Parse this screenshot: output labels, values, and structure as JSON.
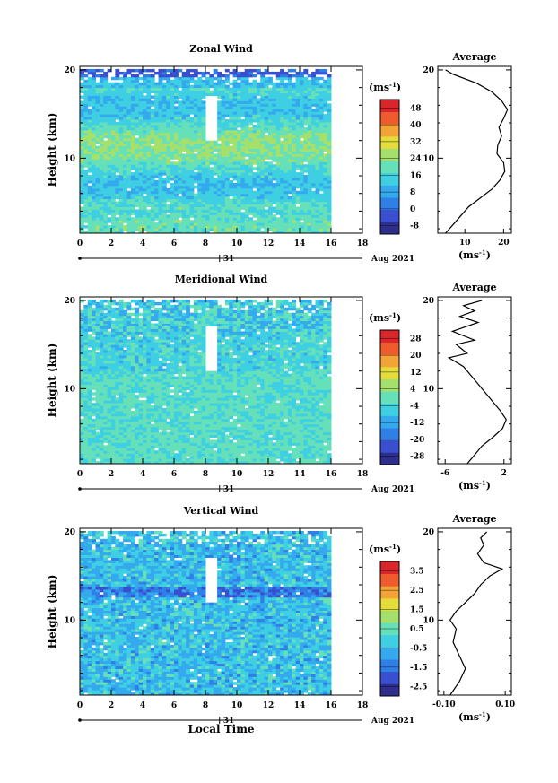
{
  "figure": {
    "date_label": "Aug 2021",
    "day_label": "31",
    "xlabel": "Local Time"
  },
  "chart_data": [
    {
      "type": "heatmap",
      "id": "zonal",
      "title": "Zonal Wind",
      "ylabel": "Height (km)",
      "xlabel": "",
      "xlim": [
        0,
        18
      ],
      "ylim": [
        1.5,
        20.4
      ],
      "xticks": [
        "0",
        "2",
        "4",
        "6",
        "8",
        "10",
        "12",
        "14",
        "16",
        "18"
      ],
      "yticks": [
        "10",
        "20"
      ],
      "data_x_end": 16,
      "colorbar": {
        "unit": "(ms",
        "unit_exp": "-1",
        "unit_close": ")",
        "ticks": [
          "-8",
          "0",
          "8",
          "16",
          "24",
          "32",
          "40",
          "48"
        ],
        "range": [
          -12,
          52
        ]
      },
      "profile": {
        "title": "Average",
        "xunit": "(ms",
        "xunit_exp": "-1",
        "xunit_close": ")",
        "xticks": [
          "10",
          "20"
        ],
        "xlim": [
          3,
          22
        ],
        "yticks": [
          "10",
          "20"
        ],
        "points": [
          [
            5,
            1.5
          ],
          [
            7,
            2.5
          ],
          [
            9,
            3.5
          ],
          [
            11,
            4.5
          ],
          [
            14,
            5.5
          ],
          [
            17,
            6.5
          ],
          [
            19,
            7.5
          ],
          [
            20.3,
            8.5
          ],
          [
            20,
            9.5
          ],
          [
            18.3,
            10.5
          ],
          [
            18.5,
            11.5
          ],
          [
            19.5,
            12.5
          ],
          [
            18.8,
            13.5
          ],
          [
            20,
            14.5
          ],
          [
            21,
            15.5
          ],
          [
            19.5,
            16.5
          ],
          [
            17,
            17.5
          ],
          [
            13,
            18.5
          ],
          [
            7,
            19.5
          ],
          [
            5,
            20
          ]
        ]
      }
    },
    {
      "type": "heatmap",
      "id": "meridional",
      "title": "Meridional Wind",
      "ylabel": "Height (km)",
      "xlabel": "",
      "xlim": [
        0,
        18
      ],
      "ylim": [
        1.5,
        20.4
      ],
      "xticks": [
        "0",
        "2",
        "4",
        "6",
        "8",
        "10",
        "12",
        "14",
        "16",
        "18"
      ],
      "yticks": [
        "10",
        "20"
      ],
      "data_x_end": 16,
      "colorbar": {
        "unit": "(ms",
        "unit_exp": "-1",
        "unit_close": ")",
        "ticks": [
          "-28",
          "-20",
          "-12",
          "-4",
          "4",
          "12",
          "20",
          "28"
        ],
        "range": [
          -32,
          32
        ]
      },
      "profile": {
        "title": "Average",
        "xunit": "(ms",
        "xunit_exp": "-1",
        "xunit_close": ")",
        "xticks": [
          "-6",
          "2"
        ],
        "xlim": [
          -7,
          3
        ],
        "yticks": [
          "10",
          "20"
        ],
        "points": [
          [
            -3,
            1.5
          ],
          [
            -2,
            2.5
          ],
          [
            -1,
            3.5
          ],
          [
            0.5,
            4.5
          ],
          [
            1.8,
            5.5
          ],
          [
            2.3,
            6.5
          ],
          [
            1.5,
            7.5
          ],
          [
            0.5,
            8.5
          ],
          [
            -0.5,
            9.5
          ],
          [
            -1.5,
            10.5
          ],
          [
            -2.5,
            11.5
          ],
          [
            -3.5,
            12.5
          ],
          [
            -5.5,
            13.5
          ],
          [
            -3,
            14
          ],
          [
            -4.5,
            15
          ],
          [
            -2,
            15.5
          ],
          [
            -5,
            16.5
          ],
          [
            -1.5,
            17.5
          ],
          [
            -4,
            18.2
          ],
          [
            -2,
            18.8
          ],
          [
            -3.5,
            19.4
          ],
          [
            -1,
            20
          ]
        ]
      }
    },
    {
      "type": "heatmap",
      "id": "vertical",
      "title": "Vertical Wind",
      "ylabel": "Height (km)",
      "xlabel": "Local Time",
      "xlim": [
        0,
        18
      ],
      "ylim": [
        1.5,
        20.4
      ],
      "xticks": [
        "0",
        "2",
        "4",
        "6",
        "8",
        "10",
        "12",
        "14",
        "16",
        "18"
      ],
      "yticks": [
        "10",
        "20"
      ],
      "data_x_end": 16,
      "colorbar": {
        "unit": "(ms",
        "unit_exp": "-1",
        "unit_close": ")",
        "ticks": [
          "-2.5",
          "-1.5",
          "-0.5",
          "0.5",
          "1.5",
          "2.5",
          "3.5"
        ],
        "range": [
          -3,
          4
        ]
      },
      "profile": {
        "title": "Average",
        "xunit": "(ms",
        "xunit_exp": "-1",
        "xunit_close": ")",
        "xticks": [
          "-0.10",
          "0.10"
        ],
        "xlim": [
          -0.12,
          0.12
        ],
        "yticks": [
          "10",
          "20"
        ],
        "points": [
          [
            -0.08,
            1.5
          ],
          [
            -0.05,
            3
          ],
          [
            -0.03,
            4.5
          ],
          [
            -0.05,
            6
          ],
          [
            -0.07,
            7.5
          ],
          [
            -0.06,
            9
          ],
          [
            -0.08,
            10
          ],
          [
            -0.06,
            11
          ],
          [
            -0.03,
            12
          ],
          [
            0.0,
            13
          ],
          [
            0.02,
            14
          ],
          [
            0.05,
            15
          ],
          [
            0.09,
            15.8
          ],
          [
            0.03,
            16.5
          ],
          [
            0.01,
            17.5
          ],
          [
            0.03,
            18.5
          ],
          [
            0.02,
            19.3
          ],
          [
            0.04,
            20
          ]
        ]
      }
    }
  ]
}
